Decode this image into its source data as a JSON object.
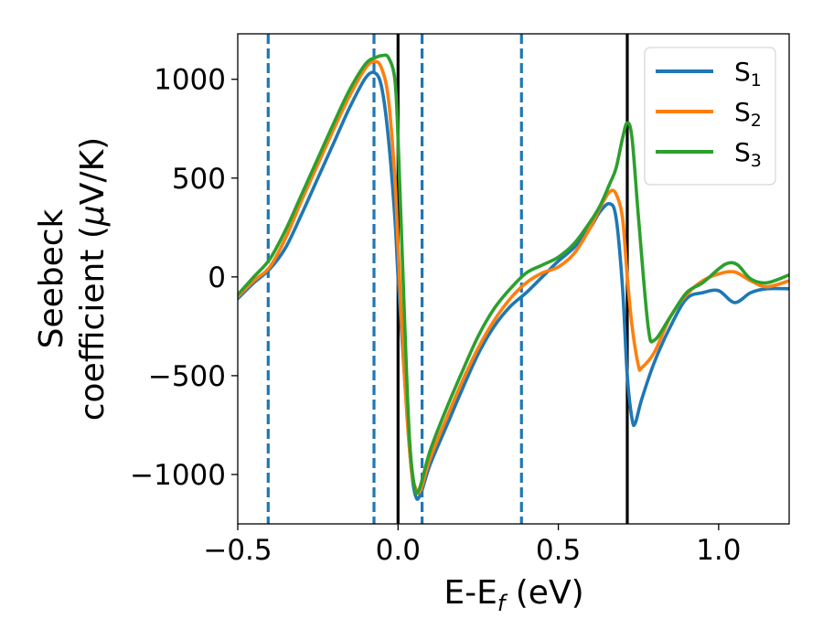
{
  "chart_data": {
    "type": "line",
    "xlabel": "E-E",
    "xlabel_sub": "f",
    "xlabel_unit": " (eV)",
    "ylabel_line1": "Seebeck",
    "ylabel_line2_a": "coefficient  (",
    "ylabel_mu": "μ",
    "ylabel_line2_b": "V/K)",
    "xlim": [
      -0.5,
      1.22
    ],
    "ylim": [
      -1250,
      1230
    ],
    "xticks": [
      -0.5,
      0.0,
      0.5,
      1.0
    ],
    "xtick_labels": [
      "−0.5",
      "0.0",
      "0.5",
      "1.0"
    ],
    "yticks": [
      -1000,
      -500,
      0,
      500,
      1000
    ],
    "ytick_labels": [
      "−1000",
      "−500",
      "0",
      "500",
      "1000"
    ],
    "grid": false,
    "legend_position": "top-right",
    "vlines_solid": [
      0.0,
      0.715
    ],
    "vlines_dashed": [
      -0.405,
      -0.075,
      0.075,
      0.385
    ],
    "colors": {
      "solid": "#000000",
      "dashed": "#1f77b4"
    },
    "series": [
      {
        "name": "S",
        "sub": "1",
        "color": "#1f77b4",
        "x": [
          -0.5,
          -0.45,
          -0.4,
          -0.35,
          -0.3,
          -0.25,
          -0.2,
          -0.15,
          -0.1,
          -0.07,
          -0.05,
          -0.03,
          -0.01,
          0.0,
          0.02,
          0.04,
          0.055,
          0.07,
          0.1,
          0.15,
          0.2,
          0.25,
          0.3,
          0.35,
          0.4,
          0.45,
          0.5,
          0.55,
          0.6,
          0.63,
          0.66,
          0.68,
          0.7,
          0.715,
          0.73,
          0.74,
          0.76,
          0.8,
          0.85,
          0.9,
          0.95,
          1.0,
          1.05,
          1.1,
          1.15,
          1.22
        ],
        "y": [
          -110,
          -30,
          40,
          150,
          320,
          500,
          680,
          860,
          1010,
          1030,
          950,
          700,
          300,
          0,
          -500,
          -950,
          -1110,
          -1100,
          -950,
          -760,
          -570,
          -390,
          -250,
          -150,
          -80,
          0,
          80,
          150,
          250,
          330,
          370,
          300,
          -50,
          -500,
          -720,
          -740,
          -620,
          -430,
          -250,
          -110,
          -80,
          -70,
          -130,
          -80,
          -60,
          -60
        ]
      },
      {
        "name": "S",
        "sub": "2",
        "color": "#ff7f0e",
        "x": [
          -0.5,
          -0.45,
          -0.4,
          -0.35,
          -0.3,
          -0.25,
          -0.2,
          -0.15,
          -0.1,
          -0.07,
          -0.05,
          -0.03,
          -0.01,
          0.0,
          0.02,
          0.04,
          0.055,
          0.07,
          0.1,
          0.15,
          0.2,
          0.25,
          0.3,
          0.35,
          0.4,
          0.45,
          0.5,
          0.55,
          0.6,
          0.63,
          0.66,
          0.68,
          0.7,
          0.715,
          0.73,
          0.75,
          0.76,
          0.8,
          0.85,
          0.9,
          0.95,
          1.0,
          1.05,
          1.1,
          1.15,
          1.22
        ],
        "y": [
          -100,
          -20,
          50,
          200,
          390,
          570,
          750,
          920,
          1060,
          1090,
          1050,
          900,
          500,
          150,
          -500,
          -950,
          -1070,
          -1080,
          -920,
          -720,
          -530,
          -360,
          -220,
          -110,
          -30,
          20,
          50,
          120,
          250,
          350,
          430,
          420,
          300,
          0,
          -250,
          -450,
          -460,
          -380,
          -200,
          -90,
          -20,
          15,
          25,
          -20,
          -50,
          -20
        ]
      },
      {
        "name": "S",
        "sub": "3",
        "color": "#2ca02c",
        "x": [
          -0.5,
          -0.45,
          -0.4,
          -0.35,
          -0.3,
          -0.25,
          -0.2,
          -0.15,
          -0.1,
          -0.07,
          -0.05,
          -0.03,
          -0.01,
          0.0,
          0.02,
          0.035,
          0.05,
          0.065,
          0.1,
          0.15,
          0.2,
          0.25,
          0.3,
          0.35,
          0.4,
          0.45,
          0.5,
          0.55,
          0.6,
          0.63,
          0.66,
          0.68,
          0.7,
          0.715,
          0.73,
          0.75,
          0.78,
          0.8,
          0.85,
          0.9,
          0.95,
          1.0,
          1.03,
          1.06,
          1.1,
          1.15,
          1.22
        ],
        "y": [
          -90,
          0,
          90,
          240,
          420,
          600,
          780,
          950,
          1080,
          1110,
          1120,
          1110,
          1000,
          700,
          -200,
          -800,
          -1050,
          -1080,
          -880,
          -670,
          -480,
          -300,
          -160,
          -60,
          20,
          60,
          100,
          170,
          280,
          360,
          470,
          550,
          700,
          780,
          700,
          300,
          -250,
          -320,
          -200,
          -80,
          -30,
          40,
          70,
          60,
          -10,
          -30,
          10
        ]
      }
    ]
  }
}
